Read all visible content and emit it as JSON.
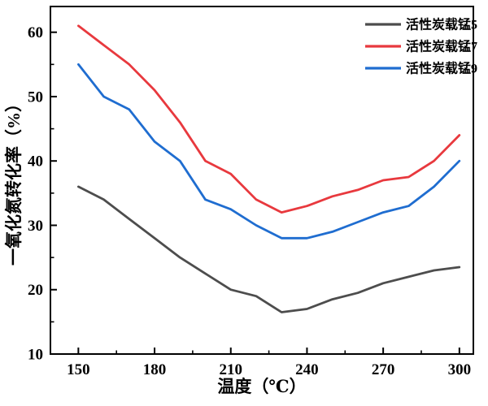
{
  "chart_data": {
    "type": "line",
    "title": "",
    "xlabel": "温度（℃）",
    "ylabel": "一氧化氮转化率（%）",
    "x": [
      150,
      160,
      170,
      180,
      190,
      200,
      210,
      220,
      230,
      240,
      250,
      260,
      270,
      280,
      290,
      300
    ],
    "series": [
      {
        "name": "活性炭载锰5",
        "color": "#4d4d4d",
        "values": [
          36,
          34,
          31,
          28,
          25,
          22.5,
          20,
          19,
          16.5,
          17,
          18.5,
          19.5,
          21,
          22,
          23,
          23.5
        ]
      },
      {
        "name": "活性炭载锰7",
        "color": "#e8393e",
        "values": [
          61,
          58,
          55,
          51,
          46,
          40,
          38,
          34,
          32,
          33,
          34.5,
          35.5,
          37,
          37.5,
          40,
          44
        ]
      },
      {
        "name": "活性炭载锰9",
        "color": "#1f6dd0",
        "values": [
          55,
          50,
          48,
          43,
          40,
          34,
          32.5,
          30,
          28,
          28,
          29,
          30.5,
          32,
          33,
          36,
          40
        ]
      }
    ],
    "xlim": [
      139,
      305.5
    ],
    "ylim": [
      10,
      64
    ],
    "x_major_ticks": [
      150,
      180,
      210,
      240,
      270,
      300
    ],
    "x_minor_ticks": [
      165,
      195,
      225,
      255,
      285
    ],
    "y_major_ticks": [
      10,
      20,
      30,
      40,
      50,
      60
    ],
    "y_minor_ticks": [
      15,
      25,
      35,
      45,
      55
    ],
    "grid": false,
    "legend_position": "top-right",
    "frame_color": "#000000",
    "background": "#ffffff"
  }
}
